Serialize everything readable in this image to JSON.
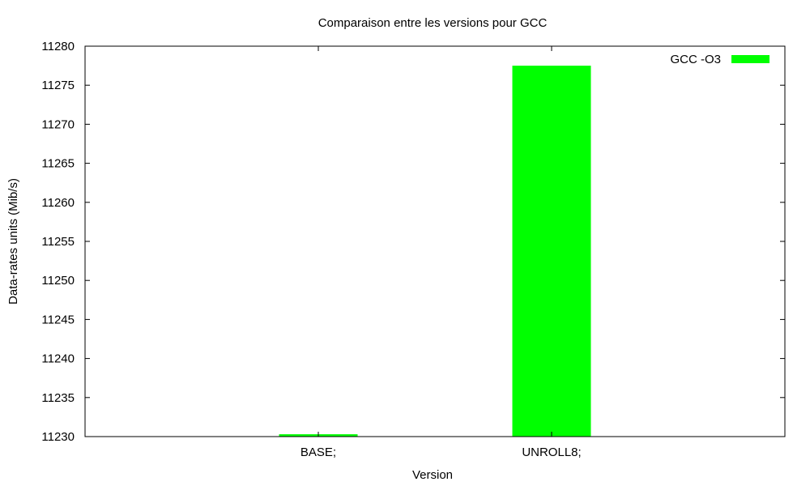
{
  "chart_data": {
    "type": "bar",
    "title": "Comparaison entre les versions pour GCC",
    "xlabel": "Version",
    "ylabel": "Data-rates units (Mib/s)",
    "categories": [
      "BASE;",
      "UNROLL8;"
    ],
    "series": [
      {
        "name": "GCC -O3",
        "color": "#00ff00",
        "values": [
          11230.3,
          11277.5
        ]
      }
    ],
    "ylim": [
      11230,
      11280
    ],
    "yticks": [
      11230,
      11235,
      11240,
      11245,
      11250,
      11255,
      11260,
      11265,
      11270,
      11275,
      11280
    ],
    "yticklabels": [
      "11230",
      "11235",
      "11240",
      "11245",
      "11250",
      "11255",
      "11260",
      "11265",
      "11270",
      "11275",
      "11280"
    ],
    "grid": false,
    "legend_position": "top-right"
  }
}
